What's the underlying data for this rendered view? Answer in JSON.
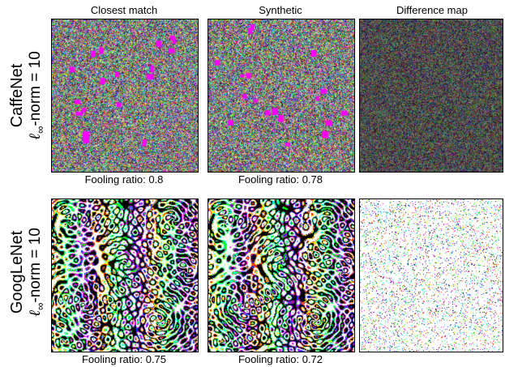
{
  "columns": {
    "closest": "Closest match",
    "synthetic": "Synthetic",
    "difference": "Difference map"
  },
  "rows": [
    {
      "network": "CaffeNet",
      "norm_prefix": "ℓ",
      "norm_sub": "∞",
      "norm_suffix": "-norm = 10",
      "closest_caption": "Fooling ratio: 0.8",
      "synthetic_caption": "Fooling ratio: 0.78",
      "panel_style": "dense-noise"
    },
    {
      "network": "GoogLeNet",
      "norm_prefix": "ℓ",
      "norm_sub": "∞",
      "norm_suffix": "-norm = 10",
      "closest_caption": "Fooling ratio: 0.75",
      "synthetic_caption": "Fooling ratio: 0.72",
      "panel_style": "swirl-pattern"
    }
  ],
  "colors": [
    "#ff00ff",
    "#00ff00",
    "#00ffff",
    "#ffff00",
    "#ff3300",
    "#0033ff",
    "#ffffff",
    "#000000"
  ]
}
